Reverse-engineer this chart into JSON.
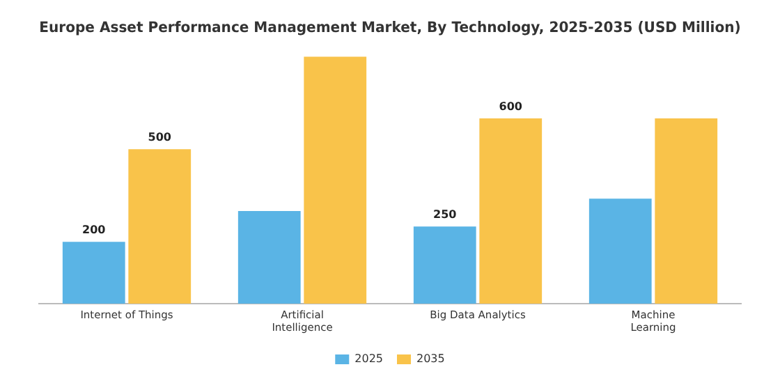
{
  "chart_data": {
    "type": "bar",
    "title": "Europe Asset Performance Management Market, By Technology, 2025-2035 (USD Million)",
    "categories": [
      "Internet of Things",
      "Artificial Intelligence",
      "Big Data Analytics",
      "Machine Learning"
    ],
    "series": [
      {
        "name": "2025",
        "color": "#5ab4e5",
        "values": [
          200,
          300,
          250,
          340
        ],
        "value_labels": [
          "200",
          null,
          "250",
          null
        ]
      },
      {
        "name": "2035",
        "color": "#f9c34a",
        "values": [
          500,
          800,
          600,
          600
        ],
        "value_labels": [
          "500",
          null,
          "600",
          null
        ]
      }
    ],
    "legend": "bottom",
    "grid": false,
    "tick_labels": "x"
  }
}
